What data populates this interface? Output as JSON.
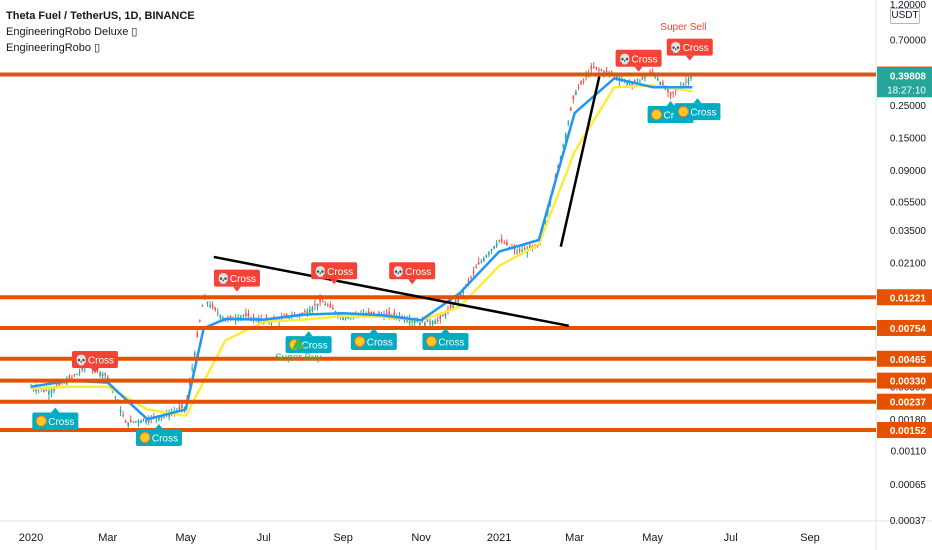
{
  "header": {
    "title": "Theta Fuel / TetherUS, 1D, BINANCE",
    "indicators": [
      "EngineeringRobo Deluxe ▯",
      "EngineeringRobo ▯"
    ]
  },
  "price_axis": {
    "unit": "USDT",
    "top_label": "1.20000",
    "current_price": "0.39808",
    "countdown": "18:27:10",
    "current_color": "#26a69a"
  },
  "colors": {
    "level_line": "#e65100",
    "cross_sell": "#f44336",
    "cross_buy": "#00acc1",
    "ma_fast": "#2196f3",
    "ma_slow": "#ffeb3b",
    "trend_line": "#000000",
    "super_buy": "#4caf50",
    "super_sell": "#f44336"
  },
  "chart_data": {
    "type": "candlestick",
    "title": "Theta Fuel / TetherUS, 1D, BINANCE",
    "scale": "log",
    "ylim": [
      0.00037,
      1.2
    ],
    "y_ticks": [
      "0.70000",
      "0.40000",
      "0.25000",
      "0.15000",
      "0.09000",
      "0.05500",
      "0.03500",
      "0.02100",
      "0.01300",
      "0.00800",
      "0.00500",
      "0.00300",
      "0.00180",
      "0.00110",
      "0.00065",
      "0.00037"
    ],
    "x_ticks": [
      "2020",
      "Mar",
      "May",
      "Jul",
      "Sep",
      "Nov",
      "2021",
      "Mar",
      "May",
      "Jul",
      "Sep"
    ],
    "horizontal_levels": [
      "0.40270",
      "0.01221",
      "0.00754",
      "0.00465",
      "0.00330",
      "0.00237",
      "0.00152"
    ],
    "trend_line": {
      "from": {
        "date": "2020-05",
        "price": 0.023
      },
      "to": {
        "date": "2021-02",
        "price": 0.0078
      }
    },
    "up_trend_line": {
      "from": {
        "date": "2021-02",
        "price": 0.027
      },
      "to": {
        "date": "2021-04",
        "price": 0.39
      }
    },
    "series": [
      {
        "name": "",
        "kind": "close",
        "x": [
          "2020-01-01",
          "2020-01-15",
          "2020-02-01",
          "2020-02-15",
          "2020-03-01",
          "2020-03-15",
          "2020-04-01",
          "2020-04-15",
          "2020-05-01",
          "2020-05-15",
          "2020-06-01",
          "2020-06-15",
          "2020-07-01",
          "2020-07-15",
          "2020-08-01",
          "2020-08-15",
          "2020-09-01",
          "2020-09-15",
          "2020-10-01",
          "2020-10-15",
          "2020-11-01",
          "2020-11-15",
          "2020-12-01",
          "2020-12-15",
          "2021-01-01",
          "2021-01-15",
          "2021-02-01",
          "2021-02-15",
          "2021-03-01",
          "2021-03-15",
          "2021-04-01",
          "2021-04-15",
          "2021-05-01",
          "2021-05-15",
          "2021-06-01"
        ],
        "y": [
          0.003,
          0.0028,
          0.0034,
          0.0042,
          0.0035,
          0.0017,
          0.0018,
          0.0019,
          0.0022,
          0.012,
          0.0085,
          0.0092,
          0.0084,
          0.0087,
          0.0095,
          0.0115,
          0.009,
          0.0095,
          0.0094,
          0.0091,
          0.0082,
          0.0085,
          0.012,
          0.02,
          0.03,
          0.025,
          0.027,
          0.085,
          0.3,
          0.45,
          0.4,
          0.34,
          0.42,
          0.29,
          0.398
        ]
      },
      {
        "name": "",
        "kind": "ma_fast",
        "x": [
          "2020-01-01",
          "2020-02-01",
          "2020-03-01",
          "2020-04-01",
          "2020-05-01",
          "2020-05-15",
          "2020-06-01",
          "2020-07-01",
          "2020-08-01",
          "2020-09-01",
          "2020-10-01",
          "2020-11-01",
          "2020-12-01",
          "2021-01-01",
          "2021-02-01",
          "2021-03-01",
          "2021-04-01",
          "2021-05-01",
          "2021-06-01"
        ],
        "y": [
          0.003,
          0.0033,
          0.0032,
          0.0018,
          0.0021,
          0.0075,
          0.0087,
          0.0086,
          0.0093,
          0.0095,
          0.0092,
          0.0085,
          0.013,
          0.025,
          0.03,
          0.22,
          0.38,
          0.33,
          0.33
        ]
      },
      {
        "name": "",
        "kind": "ma_slow",
        "x": [
          "2020-01-01",
          "2020-02-01",
          "2020-03-01",
          "2020-04-01",
          "2020-05-01",
          "2020-06-01",
          "2020-07-01",
          "2020-08-01",
          "2020-09-01",
          "2020-10-01",
          "2020-11-01",
          "2020-12-01",
          "2021-01-01",
          "2021-02-01",
          "2021-03-01",
          "2021-04-01",
          "2021-05-01",
          "2021-06-01"
        ],
        "y": [
          0.0029,
          0.003,
          0.003,
          0.0021,
          0.0019,
          0.0062,
          0.0083,
          0.0086,
          0.0091,
          0.009,
          0.0085,
          0.0105,
          0.02,
          0.028,
          0.12,
          0.33,
          0.34,
          0.31
        ]
      }
    ],
    "signals": [
      {
        "type": "sell",
        "label": "Cross",
        "date": "2020-02-20",
        "price": 0.0046
      },
      {
        "type": "buy",
        "label": "Cross",
        "date": "2020-01-20",
        "price": 0.00175
      },
      {
        "type": "buy",
        "label": "Cross",
        "date": "2020-04-10",
        "price": 0.00135
      },
      {
        "type": "sell",
        "label": "Cross",
        "date": "2020-06-10",
        "price": 0.0165
      },
      {
        "type": "sell",
        "label": "Cross",
        "date": "2020-08-25",
        "price": 0.0185
      },
      {
        "type": "sell",
        "label": "Cross",
        "date": "2020-10-25",
        "price": 0.0185
      },
      {
        "type": "buy",
        "label": "Cross",
        "date": "2020-08-05",
        "price": 0.0058
      },
      {
        "type": "buy",
        "label": "Cross",
        "date": "2020-09-25",
        "price": 0.0061
      },
      {
        "type": "buy",
        "label": "Cross",
        "date": "2020-11-20",
        "price": 0.0061
      },
      {
        "type": "sell",
        "label": "Cross",
        "date": "2021-04-20",
        "price": 0.52
      },
      {
        "type": "sell",
        "label": "Cross",
        "date": "2021-05-30",
        "price": 0.62
      },
      {
        "type": "buy",
        "label": "Cross",
        "date": "2021-05-15",
        "price": 0.215
      },
      {
        "type": "buy",
        "label": "Cross",
        "date": "2021-06-05",
        "price": 0.225
      }
    ],
    "super_signals": [
      {
        "type": "buy",
        "label": "Super Buy",
        "date": "2020-07-28",
        "price": 0.0048
      },
      {
        "type": "sell",
        "label": "Super Sell",
        "date": "2021-05-25",
        "price": 0.86
      }
    ]
  }
}
